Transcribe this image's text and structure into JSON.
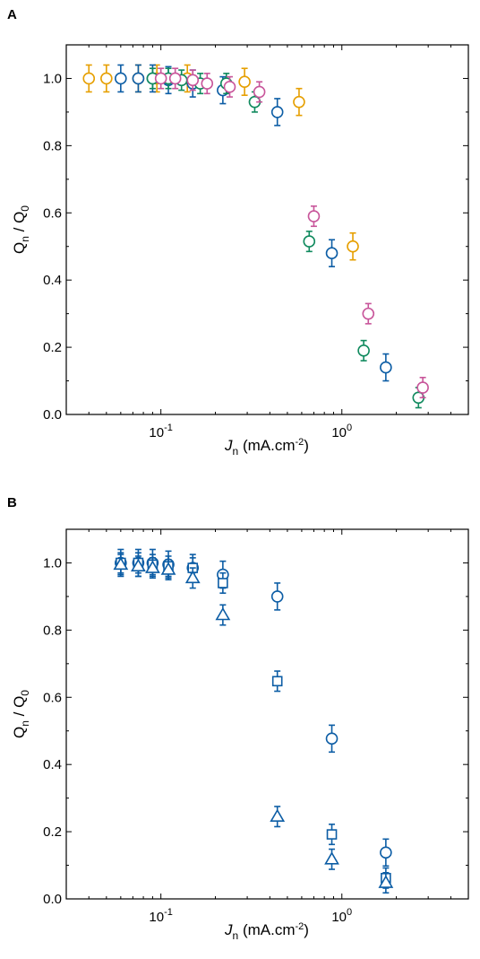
{
  "chart_data": [
    {
      "panel": "A",
      "type": "scatter",
      "xscale": "log",
      "xlim": [
        0.03,
        5
      ],
      "ylim": [
        0,
        1.1
      ],
      "grid": false,
      "xlabel": {
        "italic": "J",
        "sub": "n",
        "rest": " (mA.cm",
        "sup": "-2",
        "end": ")"
      },
      "ylabel": {
        "q1": "Q",
        "sub1": "n",
        "mid": " / Q",
        "sub2": "0"
      },
      "xticks": [
        {
          "value": 0.1,
          "base": "10",
          "exp": "-1"
        },
        {
          "value": 1,
          "base": "10",
          "exp": "0"
        }
      ],
      "yticks": [
        {
          "value": 0.0,
          "label": "0.0"
        },
        {
          "value": 0.2,
          "label": "0.2"
        },
        {
          "value": 0.4,
          "label": "0.4"
        },
        {
          "value": 0.6,
          "label": "0.6"
        },
        {
          "value": 0.8,
          "label": "0.8"
        },
        {
          "value": 1.0,
          "label": "1.0"
        }
      ],
      "series": [
        {
          "color": "#E69F00",
          "marker": "circle",
          "points": [
            {
              "x": 0.04,
              "y": 1.0,
              "err": 0.04
            },
            {
              "x": 0.05,
              "y": 1.0,
              "err": 0.04
            },
            {
              "x": 0.075,
              "y": 1.0,
              "err": 0.04
            },
            {
              "x": 0.095,
              "y": 1.0,
              "err": 0.04
            },
            {
              "x": 0.14,
              "y": 1.0,
              "err": 0.04
            },
            {
              "x": 0.29,
              "y": 0.99,
              "err": 0.04
            },
            {
              "x": 0.58,
              "y": 0.93,
              "err": 0.04
            },
            {
              "x": 1.15,
              "y": 0.5,
              "err": 0.04
            }
          ]
        },
        {
          "color": "#0C5DA5",
          "marker": "circle",
          "points": [
            {
              "x": 0.06,
              "y": 1.0,
              "err": 0.04
            },
            {
              "x": 0.075,
              "y": 1.0,
              "err": 0.04
            },
            {
              "x": 0.09,
              "y": 1.0,
              "err": 0.04
            },
            {
              "x": 0.11,
              "y": 0.995,
              "err": 0.04
            },
            {
              "x": 0.15,
              "y": 0.985,
              "err": 0.04
            },
            {
              "x": 0.22,
              "y": 0.965,
              "err": 0.04
            },
            {
              "x": 0.44,
              "y": 0.9,
              "err": 0.04
            },
            {
              "x": 0.88,
              "y": 0.48,
              "err": 0.04
            },
            {
              "x": 1.75,
              "y": 0.14,
              "err": 0.04
            }
          ]
        },
        {
          "color": "#108A5E",
          "marker": "circle",
          "points": [
            {
              "x": 0.09,
              "y": 1.0,
              "err": 0.03
            },
            {
              "x": 0.11,
              "y": 1.0,
              "err": 0.03
            },
            {
              "x": 0.13,
              "y": 0.995,
              "err": 0.03
            },
            {
              "x": 0.165,
              "y": 0.985,
              "err": 0.03
            },
            {
              "x": 0.23,
              "y": 0.985,
              "err": 0.03
            },
            {
              "x": 0.33,
              "y": 0.93,
              "err": 0.03
            },
            {
              "x": 0.66,
              "y": 0.515,
              "err": 0.03
            },
            {
              "x": 1.32,
              "y": 0.19,
              "err": 0.03
            },
            {
              "x": 2.65,
              "y": 0.05,
              "err": 0.03
            }
          ]
        },
        {
          "color": "#C8559A",
          "marker": "circle",
          "points": [
            {
              "x": 0.1,
              "y": 1.0,
              "err": 0.03
            },
            {
              "x": 0.12,
              "y": 1.0,
              "err": 0.03
            },
            {
              "x": 0.15,
              "y": 0.995,
              "err": 0.03
            },
            {
              "x": 0.18,
              "y": 0.985,
              "err": 0.03
            },
            {
              "x": 0.24,
              "y": 0.975,
              "err": 0.03
            },
            {
              "x": 0.35,
              "y": 0.96,
              "err": 0.03
            },
            {
              "x": 0.7,
              "y": 0.59,
              "err": 0.03
            },
            {
              "x": 1.4,
              "y": 0.3,
              "err": 0.03
            },
            {
              "x": 2.8,
              "y": 0.08,
              "err": 0.03
            }
          ]
        }
      ]
    },
    {
      "panel": "B",
      "type": "scatter",
      "xscale": "log",
      "xlim": [
        0.03,
        5
      ],
      "ylim": [
        0,
        1.1
      ],
      "grid": false,
      "xlabel": {
        "italic": "J",
        "sub": "n",
        "rest": " (mA.cm",
        "sup": "-2",
        "end": ")"
      },
      "ylabel": {
        "q1": "Q",
        "sub1": "n",
        "mid": " / Q",
        "sub2": "0"
      },
      "xticks": [
        {
          "value": 0.1,
          "base": "10",
          "exp": "-1"
        },
        {
          "value": 1,
          "base": "10",
          "exp": "0"
        }
      ],
      "yticks": [
        {
          "value": 0.0,
          "label": "0.0"
        },
        {
          "value": 0.2,
          "label": "0.2"
        },
        {
          "value": 0.4,
          "label": "0.4"
        },
        {
          "value": 0.6,
          "label": "0.6"
        },
        {
          "value": 0.8,
          "label": "0.8"
        },
        {
          "value": 1.0,
          "label": "1.0"
        }
      ],
      "series": [
        {
          "color": "#0C5DA5",
          "marker": "circle",
          "points": [
            {
              "x": 0.06,
              "y": 1.0,
              "err": 0.04
            },
            {
              "x": 0.075,
              "y": 1.0,
              "err": 0.04
            },
            {
              "x": 0.09,
              "y": 1.0,
              "err": 0.04
            },
            {
              "x": 0.11,
              "y": 0.995,
              "err": 0.04
            },
            {
              "x": 0.15,
              "y": 0.985,
              "err": 0.04
            },
            {
              "x": 0.22,
              "y": 0.965,
              "err": 0.04
            },
            {
              "x": 0.44,
              "y": 0.9,
              "err": 0.04
            },
            {
              "x": 0.88,
              "y": 0.477,
              "err": 0.04
            },
            {
              "x": 1.75,
              "y": 0.138,
              "err": 0.04
            }
          ]
        },
        {
          "color": "#0C5DA5",
          "marker": "square",
          "points": [
            {
              "x": 0.06,
              "y": 1.0,
              "err": 0.03
            },
            {
              "x": 0.075,
              "y": 1.0,
              "err": 0.03
            },
            {
              "x": 0.09,
              "y": 0.995,
              "err": 0.03
            },
            {
              "x": 0.11,
              "y": 0.99,
              "err": 0.03
            },
            {
              "x": 0.15,
              "y": 0.985,
              "err": 0.03
            },
            {
              "x": 0.22,
              "y": 0.94,
              "err": 0.03
            },
            {
              "x": 0.44,
              "y": 0.648,
              "err": 0.03
            },
            {
              "x": 0.88,
              "y": 0.192,
              "err": 0.03
            },
            {
              "x": 1.75,
              "y": 0.062,
              "err": 0.03
            }
          ]
        },
        {
          "color": "#0C5DA5",
          "marker": "triangle",
          "points": [
            {
              "x": 0.06,
              "y": 0.995,
              "err": 0.03
            },
            {
              "x": 0.075,
              "y": 0.99,
              "err": 0.03
            },
            {
              "x": 0.09,
              "y": 0.985,
              "err": 0.03
            },
            {
              "x": 0.11,
              "y": 0.98,
              "err": 0.03
            },
            {
              "x": 0.15,
              "y": 0.955,
              "err": 0.03
            },
            {
              "x": 0.22,
              "y": 0.845,
              "err": 0.03
            },
            {
              "x": 0.44,
              "y": 0.245,
              "err": 0.03
            },
            {
              "x": 0.88,
              "y": 0.118,
              "err": 0.03
            },
            {
              "x": 1.75,
              "y": 0.048,
              "err": 0.03
            }
          ]
        }
      ]
    }
  ]
}
